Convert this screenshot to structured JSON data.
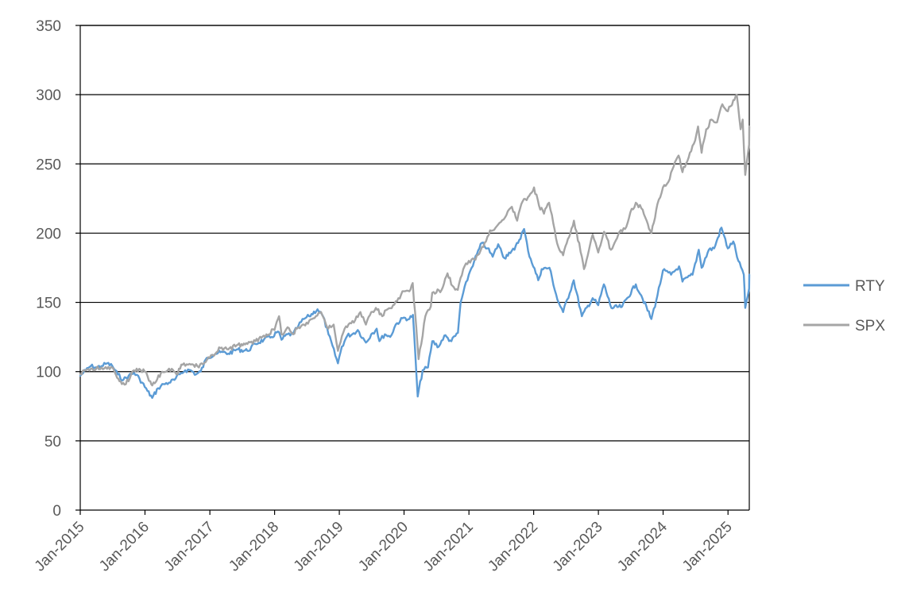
{
  "chart_data": {
    "type": "line",
    "title": "",
    "xlabel": "",
    "ylabel": "",
    "ylim": [
      0,
      350
    ],
    "yticks": [
      0,
      50,
      100,
      150,
      200,
      250,
      300,
      350
    ],
    "x_tick_labels": [
      "Jan-2015",
      "Jan-2016",
      "Jan-2017",
      "Jan-2018",
      "Jan-2019",
      "Jan-2020",
      "Jan-2021",
      "Jan-2022",
      "Jan-2023",
      "Jan-2024",
      "Jan-2025"
    ],
    "xlim": [
      "2015-01-01",
      "2025-05-01"
    ],
    "grid": "horizontal",
    "legend_position": "right",
    "series": [
      {
        "name": "RTY",
        "color": "#5b9bd5",
        "points": [
          [
            "2015-01-01",
            97
          ],
          [
            "2015-02-01",
            101
          ],
          [
            "2015-03-01",
            104
          ],
          [
            "2015-04-01",
            103
          ],
          [
            "2015-05-01",
            104
          ],
          [
            "2015-06-01",
            106
          ],
          [
            "2015-07-01",
            104
          ],
          [
            "2015-08-01",
            98
          ],
          [
            "2015-09-01",
            94
          ],
          [
            "2015-10-01",
            97
          ],
          [
            "2015-11-01",
            99
          ],
          [
            "2015-12-01",
            95
          ],
          [
            "2016-01-15",
            86
          ],
          [
            "2016-02-11",
            81
          ],
          [
            "2016-03-15",
            88
          ],
          [
            "2016-04-15",
            91
          ],
          [
            "2016-05-15",
            92
          ],
          [
            "2016-06-15",
            94
          ],
          [
            "2016-07-15",
            98
          ],
          [
            "2016-08-15",
            101
          ],
          [
            "2016-09-15",
            101
          ],
          [
            "2016-10-15",
            98
          ],
          [
            "2016-11-10",
            100
          ],
          [
            "2016-12-15",
            110
          ],
          [
            "2017-02-01",
            113
          ],
          [
            "2017-03-01",
            114
          ],
          [
            "2017-04-15",
            113
          ],
          [
            "2017-06-01",
            116
          ],
          [
            "2017-08-01",
            115
          ],
          [
            "2017-09-15",
            120
          ],
          [
            "2017-11-01",
            123
          ],
          [
            "2017-12-15",
            125
          ],
          [
            "2018-01-20",
            129
          ],
          [
            "2018-02-09",
            123
          ],
          [
            "2018-03-15",
            127
          ],
          [
            "2018-04-15",
            127
          ],
          [
            "2018-05-15",
            133
          ],
          [
            "2018-06-15",
            138
          ],
          [
            "2018-07-15",
            140
          ],
          [
            "2018-08-31",
            145
          ],
          [
            "2018-10-01",
            140
          ],
          [
            "2018-11-01",
            127
          ],
          [
            "2018-12-24",
            106
          ],
          [
            "2019-01-15",
            118
          ],
          [
            "2019-02-15",
            126
          ],
          [
            "2019-03-15",
            127
          ],
          [
            "2019-04-15",
            130
          ],
          [
            "2019-05-31",
            121
          ],
          [
            "2019-06-30",
            127
          ],
          [
            "2019-07-31",
            131
          ],
          [
            "2019-08-15",
            122
          ],
          [
            "2019-09-15",
            127
          ],
          [
            "2019-10-15",
            125
          ],
          [
            "2019-11-15",
            134
          ],
          [
            "2019-12-31",
            139
          ],
          [
            "2020-01-31",
            138
          ],
          [
            "2020-02-20",
            141
          ],
          [
            "2020-03-18",
            82
          ],
          [
            "2020-04-15",
            101
          ],
          [
            "2020-05-15",
            103
          ],
          [
            "2020-06-08",
            122
          ],
          [
            "2020-07-15",
            118
          ],
          [
            "2020-08-15",
            126
          ],
          [
            "2020-09-24",
            122
          ],
          [
            "2020-10-31",
            128
          ],
          [
            "2020-11-15",
            150
          ],
          [
            "2020-12-31",
            170
          ],
          [
            "2021-01-31",
            180
          ],
          [
            "2021-03-15",
            193
          ],
          [
            "2021-04-15",
            189
          ],
          [
            "2021-05-15",
            183
          ],
          [
            "2021-06-15",
            192
          ],
          [
            "2021-07-20",
            182
          ],
          [
            "2021-08-15",
            186
          ],
          [
            "2021-09-15",
            188
          ],
          [
            "2021-11-08",
            203
          ],
          [
            "2021-12-01",
            187
          ],
          [
            "2022-01-27",
            166
          ],
          [
            "2022-02-15",
            174
          ],
          [
            "2022-03-31",
            175
          ],
          [
            "2022-05-15",
            152
          ],
          [
            "2022-06-16",
            143
          ],
          [
            "2022-08-15",
            166
          ],
          [
            "2022-09-30",
            140
          ],
          [
            "2022-11-30",
            153
          ],
          [
            "2022-12-31",
            148
          ],
          [
            "2023-02-01",
            163
          ],
          [
            "2023-03-15",
            146
          ],
          [
            "2023-05-15",
            147
          ],
          [
            "2023-07-31",
            163
          ],
          [
            "2023-08-31",
            155
          ],
          [
            "2023-10-27",
            138
          ],
          [
            "2023-11-30",
            155
          ],
          [
            "2023-12-31",
            173
          ],
          [
            "2024-02-15",
            170
          ],
          [
            "2024-03-31",
            176
          ],
          [
            "2024-04-19",
            165
          ],
          [
            "2024-06-15",
            170
          ],
          [
            "2024-07-20",
            188
          ],
          [
            "2024-08-05",
            175
          ],
          [
            "2024-09-15",
            188
          ],
          [
            "2024-10-15",
            189
          ],
          [
            "2024-11-25",
            204
          ],
          [
            "2024-12-31",
            189
          ],
          [
            "2025-01-31",
            194
          ],
          [
            "2025-02-28",
            180
          ],
          [
            "2025-03-31",
            170
          ],
          [
            "2025-04-08",
            146
          ],
          [
            "2025-04-30",
            160
          ],
          [
            "2025-05-01",
            170
          ]
        ]
      },
      {
        "name": "SPX",
        "color": "#a5a5a5",
        "points": [
          [
            "2015-01-01",
            98
          ],
          [
            "2015-02-01",
            101
          ],
          [
            "2015-03-01",
            102
          ],
          [
            "2015-04-01",
            102
          ],
          [
            "2015-05-01",
            103
          ],
          [
            "2015-06-01",
            102
          ],
          [
            "2015-07-01",
            103
          ],
          [
            "2015-08-24",
            91
          ],
          [
            "2015-09-30",
            93
          ],
          [
            "2015-10-31",
            101
          ],
          [
            "2015-11-30",
            102
          ],
          [
            "2015-12-31",
            100
          ],
          [
            "2016-01-31",
            93
          ],
          [
            "2016-02-11",
            90
          ],
          [
            "2016-03-31",
            99
          ],
          [
            "2016-04-30",
            100
          ],
          [
            "2016-05-31",
            102
          ],
          [
            "2016-06-27",
            98
          ],
          [
            "2016-07-31",
            105
          ],
          [
            "2016-08-31",
            105
          ],
          [
            "2016-09-30",
            105
          ],
          [
            "2016-10-31",
            103
          ],
          [
            "2016-11-15",
            106
          ],
          [
            "2016-12-31",
            110
          ],
          [
            "2017-02-01",
            113
          ],
          [
            "2017-03-01",
            117
          ],
          [
            "2017-04-15",
            116
          ],
          [
            "2017-06-01",
            119
          ],
          [
            "2017-08-01",
            120
          ],
          [
            "2017-09-15",
            122
          ],
          [
            "2017-11-01",
            126
          ],
          [
            "2017-12-31",
            130
          ],
          [
            "2018-01-26",
            140
          ],
          [
            "2018-02-09",
            127
          ],
          [
            "2018-03-15",
            132
          ],
          [
            "2018-04-15",
            127
          ],
          [
            "2018-05-15",
            132
          ],
          [
            "2018-06-15",
            134
          ],
          [
            "2018-07-31",
            138
          ],
          [
            "2018-09-20",
            143
          ],
          [
            "2018-10-31",
            131
          ],
          [
            "2018-11-30",
            134
          ],
          [
            "2018-12-24",
            115
          ],
          [
            "2019-01-31",
            131
          ],
          [
            "2019-03-31",
            137
          ],
          [
            "2019-04-30",
            143
          ],
          [
            "2019-05-31",
            134
          ],
          [
            "2019-06-30",
            143
          ],
          [
            "2019-07-26",
            146
          ],
          [
            "2019-08-31",
            140
          ],
          [
            "2019-09-30",
            145
          ],
          [
            "2019-10-31",
            148
          ],
          [
            "2019-11-30",
            153
          ],
          [
            "2019-12-31",
            158
          ],
          [
            "2020-01-31",
            158
          ],
          [
            "2020-02-19",
            164
          ],
          [
            "2020-03-23",
            109
          ],
          [
            "2020-04-30",
            140
          ],
          [
            "2020-05-31",
            147
          ],
          [
            "2020-06-08",
            157
          ],
          [
            "2020-07-31",
            159
          ],
          [
            "2020-09-02",
            171
          ],
          [
            "2020-09-30",
            162
          ],
          [
            "2020-10-30",
            159
          ],
          [
            "2020-11-30",
            174
          ],
          [
            "2020-12-31",
            180
          ],
          [
            "2021-01-31",
            181
          ],
          [
            "2021-02-28",
            185
          ],
          [
            "2021-03-31",
            193
          ],
          [
            "2021-04-30",
            202
          ],
          [
            "2021-05-31",
            204
          ],
          [
            "2021-06-30",
            208
          ],
          [
            "2021-07-31",
            213
          ],
          [
            "2021-08-31",
            219
          ],
          [
            "2021-09-30",
            209
          ],
          [
            "2021-10-31",
            223
          ],
          [
            "2021-11-30",
            226
          ],
          [
            "2022-01-03",
            233
          ],
          [
            "2022-01-31",
            220
          ],
          [
            "2022-02-28",
            214
          ],
          [
            "2022-03-29",
            222
          ],
          [
            "2022-04-30",
            202
          ],
          [
            "2022-05-20",
            190
          ],
          [
            "2022-06-16",
            184
          ],
          [
            "2022-08-16",
            209
          ],
          [
            "2022-09-30",
            183
          ],
          [
            "2022-10-12",
            174
          ],
          [
            "2022-11-30",
            199
          ],
          [
            "2022-12-31",
            186
          ],
          [
            "2023-02-02",
            201
          ],
          [
            "2023-03-13",
            188
          ],
          [
            "2023-04-30",
            201
          ],
          [
            "2023-05-31",
            203
          ],
          [
            "2023-06-30",
            215
          ],
          [
            "2023-07-31",
            222
          ],
          [
            "2023-08-31",
            218
          ],
          [
            "2023-09-30",
            209
          ],
          [
            "2023-10-27",
            200
          ],
          [
            "2023-11-30",
            221
          ],
          [
            "2023-12-31",
            233
          ],
          [
            "2024-01-31",
            237
          ],
          [
            "2024-02-29",
            248
          ],
          [
            "2024-03-28",
            256
          ],
          [
            "2024-04-19",
            244
          ],
          [
            "2024-05-31",
            258
          ],
          [
            "2024-06-30",
            267
          ],
          [
            "2024-07-16",
            277
          ],
          [
            "2024-08-05",
            258
          ],
          [
            "2024-08-31",
            275
          ],
          [
            "2024-09-30",
            282
          ],
          [
            "2024-10-31",
            280
          ],
          [
            "2024-11-30",
            293
          ],
          [
            "2024-12-31",
            288
          ],
          [
            "2025-01-31",
            296
          ],
          [
            "2025-02-19",
            300
          ],
          [
            "2025-03-13",
            275
          ],
          [
            "2025-03-25",
            282
          ],
          [
            "2025-04-08",
            242
          ],
          [
            "2025-04-30",
            264
          ],
          [
            "2025-05-01",
            277
          ]
        ]
      }
    ]
  }
}
